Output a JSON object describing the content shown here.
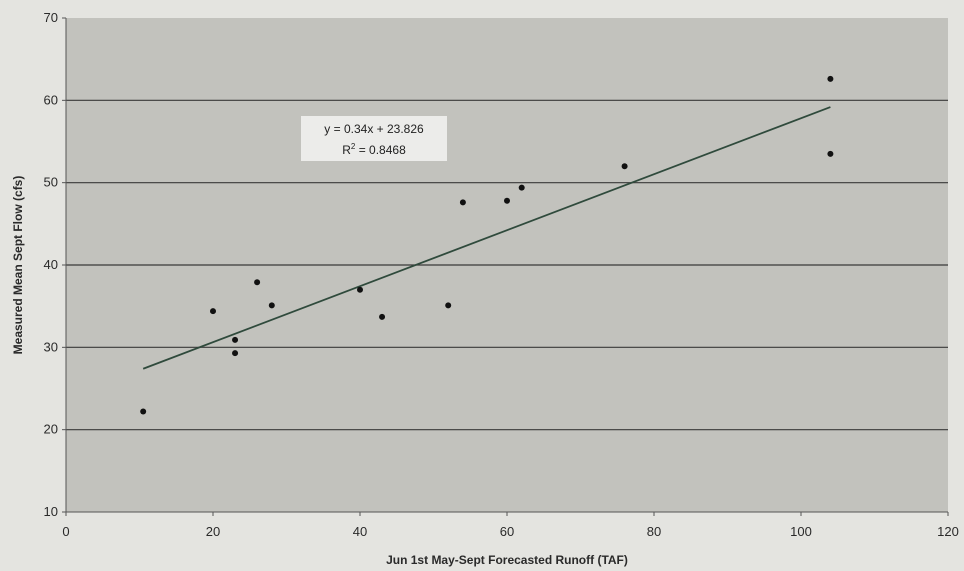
{
  "chart_data": {
    "type": "scatter",
    "xlabel": "Jun 1st May-Sept Forecasted Runoff (TAF)",
    "ylabel": "Measured Mean Sept Flow (cfs)",
    "xlim": [
      0,
      120
    ],
    "ylim": [
      10,
      70
    ],
    "x_ticks": [
      0,
      20,
      40,
      60,
      80,
      100,
      120
    ],
    "y_ticks": [
      10,
      20,
      30,
      40,
      50,
      60,
      70
    ],
    "horizontal_gridlines": true,
    "series": [
      {
        "x": [
          10.5,
          20,
          23,
          23,
          26,
          28,
          40,
          43,
          52,
          54,
          60,
          62,
          76,
          104,
          104
        ],
        "y": [
          22.2,
          34.4,
          29.3,
          30.9,
          37.9,
          35.1,
          37.0,
          33.7,
          35.1,
          47.6,
          47.8,
          49.4,
          52.0,
          62.6,
          53.5
        ]
      }
    ],
    "trendline": {
      "slope": 0.34,
      "intercept": 23.826,
      "x_range": [
        10.5,
        104
      ],
      "equation_label": "y = 0.34x + 23.826",
      "r2_prefix": "R",
      "r2_superscript": "2",
      "r2_suffix": " = 0.8468"
    },
    "colors": {
      "plot_background": "#c2c2bd",
      "gridline": "#3a3a3a",
      "marker": "#111111",
      "trendline": "#2f4a3c",
      "label_box": "#ececea"
    }
  }
}
